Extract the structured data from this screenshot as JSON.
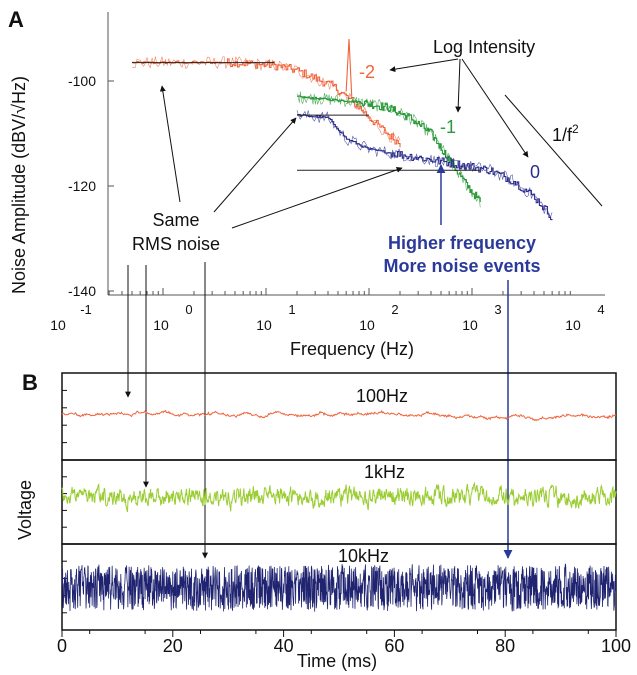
{
  "panels": {
    "a": "A",
    "b": "B"
  },
  "colors": {
    "red": "#f0643c",
    "green": "#2a9a3a",
    "blue": "#2b2d8c",
    "lime": "#9acd32",
    "navy": "#1f2370",
    "axis": "#555555",
    "arrow_blue": "#2b3a9a"
  },
  "chart_data": [
    {
      "type": "line",
      "xlabel": "Frequency (Hz)",
      "ylabel": "Noise Amplitude (dBV/√Hz)",
      "x_scale": "log",
      "xlim": [
        0.1,
        10000
      ],
      "ylim": [
        -145,
        -90
      ],
      "xtick_base": "10",
      "xtick_exponents": [
        "-1",
        "0",
        "1",
        "2",
        "3",
        "4"
      ],
      "yticks": [
        -100,
        -120,
        -140
      ],
      "ytick_labels": [
        "-100",
        "-120",
        "-140"
      ],
      "series": [
        {
          "name": "-2",
          "color": "#f0643c",
          "points": [
            [
              0.5,
              -96.5
            ],
            [
              5,
              -96.5
            ],
            [
              8,
              -96.8
            ],
            [
              12,
              -97
            ],
            [
              20,
              -98
            ],
            [
              30,
              -99.5
            ],
            [
              45,
              -101
            ],
            [
              60,
              -103
            ],
            [
              80,
              -105
            ],
            [
              100,
              -107
            ],
            [
              150,
              -110
            ],
            [
              200,
              -112
            ]
          ]
        },
        {
          "name": "-1",
          "color": "#2a9a3a",
          "points": [
            [
              20,
              -103
            ],
            [
              40,
              -103.5
            ],
            [
              80,
              -104
            ],
            [
              150,
              -105
            ],
            [
              250,
              -107
            ],
            [
              400,
              -110
            ],
            [
              600,
              -115
            ],
            [
              900,
              -120
            ],
            [
              1200,
              -123
            ]
          ]
        },
        {
          "name": "0",
          "color": "#2b2d8c",
          "points": [
            [
              20,
              -106.5
            ],
            [
              40,
              -107
            ],
            [
              60,
              -111
            ],
            [
              100,
              -113
            ],
            [
              200,
              -114
            ],
            [
              400,
              -115
            ],
            [
              800,
              -116
            ],
            [
              1500,
              -117
            ],
            [
              2500,
              -119
            ],
            [
              4000,
              -122
            ],
            [
              6000,
              -126
            ]
          ]
        }
      ],
      "rms_lines_y": [
        -96.5,
        -106.5,
        -117
      ],
      "annotations": {
        "log_intensity": "Log Intensity",
        "label_neg2": "-2",
        "label_neg1": "-1",
        "label_0": "0",
        "slope_base": "1/f",
        "slope_exp": "2",
        "same_rms": [
          "Same",
          "RMS noise"
        ],
        "higher_freq": [
          "Higher frequency",
          "More noise events"
        ]
      }
    },
    {
      "type": "line",
      "xlabel": "Time (ms)",
      "ylabel": "Voltage",
      "xlim": [
        0,
        100
      ],
      "xticks": [
        0,
        20,
        40,
        60,
        80,
        100
      ],
      "xtick_labels": [
        "0",
        "20",
        "40",
        "60",
        "80",
        "100"
      ],
      "traces": [
        {
          "name": "100Hz",
          "color": "#f0643c"
        },
        {
          "name": "1kHz",
          "color": "#9acd32"
        },
        {
          "name": "10kHz",
          "color": "#1f2370"
        }
      ]
    }
  ]
}
